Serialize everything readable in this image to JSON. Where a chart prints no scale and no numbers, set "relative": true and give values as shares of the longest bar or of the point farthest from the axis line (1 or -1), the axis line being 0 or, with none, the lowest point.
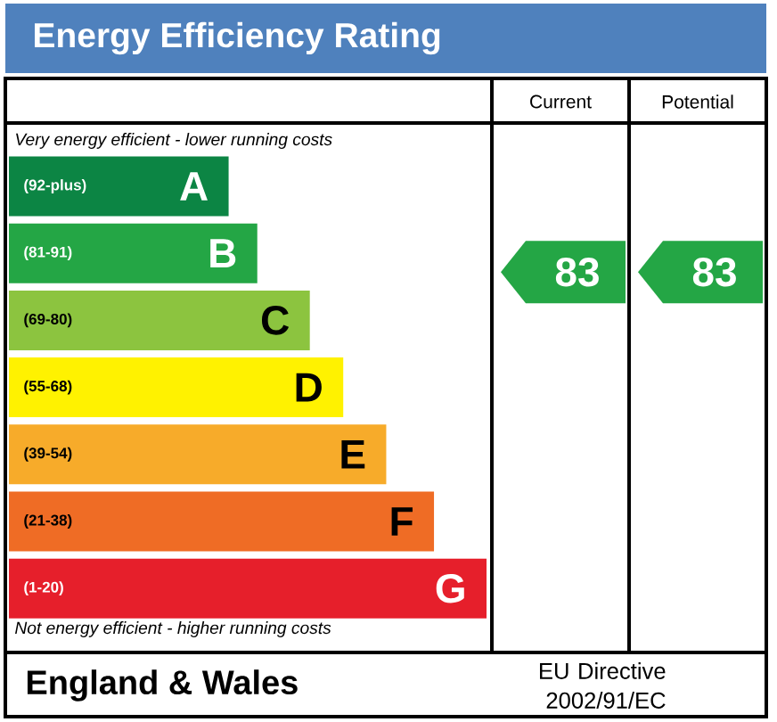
{
  "chart_data": [
    {
      "type": "bar",
      "orientation": "horizontal",
      "relative": true,
      "title": "Energy Efficiency Rating",
      "categories": [
        "(92-plus)",
        "(81-91)",
        "(69-80)",
        "(55-68)",
        "(39-54)",
        "(21-38)",
        "(1-20)"
      ],
      "values": [
        0.46,
        0.52,
        0.63,
        0.7,
        0.79,
        0.89,
        1
      ],
      "colors": [
        "#0c8544",
        "#24a645",
        "#8cc43f",
        "#fff200",
        "#f7ab2a",
        "#ef6c25",
        "#e61f2b"
      ],
      "annotations": [
        {
          "text": "A",
          "x": 0.46,
          "y": "(92-plus)"
        },
        {
          "text": "B",
          "x": 0.52,
          "y": "(81-91)"
        },
        {
          "text": "C",
          "x": 0.63,
          "y": "(69-80)"
        },
        {
          "text": "D",
          "x": 0.7,
          "y": "(55-68)"
        },
        {
          "text": "E",
          "x": 0.79,
          "y": "(39-54)"
        },
        {
          "text": "F",
          "x": 0.89,
          "y": "(21-38)"
        },
        {
          "text": "G",
          "x": 1,
          "y": "(1-20)"
        },
        "Very energy efficient - lower running costs",
        "Not energy efficient - higher running costs",
        "England & Wales",
        "EU Directive 2002/91/EC"
      ]
    },
    {
      "type": "other",
      "categories": [
        "Current",
        "Potential"
      ],
      "values": [
        83,
        83
      ],
      "colors": [
        "#24a645",
        "#24a645"
      ],
      "data_labels": true
    }
  ]
}
